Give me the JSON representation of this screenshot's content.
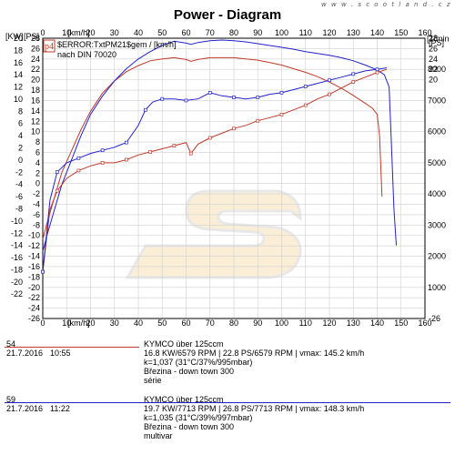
{
  "header": {
    "title": "Power - Diagram",
    "site": "w w w . s c o o t l a n d . c z"
  },
  "legend_box": {
    "line1": "$ERROR:TxtPM21$gem / [km/h]",
    "line2": "nach DIN 70020"
  },
  "chart_data": {
    "type": "line",
    "x_unit_label": "[km/h]",
    "xlim": [
      0,
      160
    ],
    "x_ticks": [
      0,
      10,
      20,
      30,
      40,
      50,
      60,
      70,
      80,
      90,
      100,
      110,
      120,
      130,
      140,
      150,
      160
    ],
    "axes": {
      "kw": {
        "label": "[KW]",
        "lim": [
          -26,
          20
        ],
        "ticks": [
          20,
          18,
          16,
          14,
          12,
          10,
          8,
          6,
          4,
          2,
          0,
          -2,
          -4,
          -6,
          -8,
          -10,
          -12,
          -14,
          -16,
          -18,
          -20,
          -22
        ]
      },
      "ps": {
        "label": "[PS]",
        "lim": [
          -26,
          28
        ],
        "ticks": [
          28,
          26,
          24,
          22,
          20,
          18,
          16,
          14,
          12,
          10,
          8,
          6,
          4,
          2,
          0,
          -2,
          -4,
          -6,
          -8,
          -10,
          -12,
          -14,
          -16,
          -18,
          -20,
          -22,
          -24,
          -26
        ]
      },
      "ps_right": {
        "label": "[PS]",
        "ticks": [
          28,
          26,
          24,
          22,
          20
        ],
        "bottom_tick": -26
      },
      "rpm": {
        "label": "[1/min",
        "lim": [
          0,
          9000
        ],
        "ticks": [
          8000,
          7000,
          6000,
          5000,
          4000,
          3000,
          2000,
          1000
        ]
      }
    },
    "series": [
      {
        "id": "54",
        "color": "#c0392b",
        "kind": "power_kw",
        "x": [
          0,
          2,
          5,
          8,
          12,
          16,
          20,
          25,
          30,
          35,
          40,
          45,
          50,
          55,
          60,
          62,
          65,
          70,
          75,
          80,
          85,
          90,
          95,
          100,
          105,
          110,
          115,
          120,
          125,
          130,
          135,
          138,
          140,
          141,
          142
        ],
        "y": [
          -13,
          -10,
          -6,
          -2,
          1.5,
          5,
          8,
          11,
          13,
          14.5,
          15.5,
          16.3,
          16.6,
          16.8,
          16.5,
          16.2,
          16.5,
          16.8,
          16.8,
          16.8,
          16.6,
          16.4,
          16.0,
          15.6,
          15.0,
          14.4,
          13.7,
          12.8,
          11.8,
          10.6,
          9.3,
          8.5,
          7.5,
          4,
          -6
        ]
      },
      {
        "id": "59",
        "color": "#2222cc",
        "kind": "power_kw",
        "x": [
          0,
          2,
          5,
          8,
          12,
          16,
          20,
          25,
          30,
          35,
          40,
          45,
          50,
          55,
          60,
          62,
          65,
          70,
          75,
          80,
          85,
          90,
          95,
          100,
          105,
          110,
          115,
          120,
          125,
          130,
          135,
          140,
          143,
          145,
          146,
          147,
          148
        ],
        "y": [
          -15,
          -12,
          -8,
          -4,
          0,
          4,
          7.5,
          10.5,
          13,
          15,
          16.6,
          17.8,
          18.8,
          19.5,
          19.2,
          19.0,
          19.3,
          19.6,
          19.7,
          19.6,
          19.4,
          19.1,
          18.8,
          18.5,
          18.2,
          17.8,
          17.5,
          17.2,
          16.8,
          16.3,
          15.6,
          14.8,
          14.0,
          12,
          2,
          -8,
          -14
        ]
      },
      {
        "id": "54",
        "color": "#c0392b",
        "kind": "rpm",
        "x": [
          0,
          3,
          6,
          10,
          15,
          20,
          25,
          30,
          35,
          40,
          45,
          50,
          55,
          60,
          62,
          65,
          70,
          75,
          80,
          85,
          90,
          95,
          100,
          105,
          110,
          115,
          120,
          125,
          130,
          135,
          140,
          144
        ],
        "y": [
          1500,
          3500,
          4100,
          4500,
          4750,
          4900,
          5000,
          5000,
          5100,
          5250,
          5350,
          5450,
          5550,
          5650,
          5300,
          5600,
          5800,
          5950,
          6100,
          6200,
          6350,
          6450,
          6550,
          6700,
          6850,
          7050,
          7200,
          7400,
          7600,
          7750,
          7900,
          8000
        ]
      },
      {
        "id": "59",
        "color": "#2222cc",
        "kind": "rpm",
        "x": [
          0,
          3,
          6,
          10,
          15,
          20,
          25,
          30,
          35,
          40,
          43,
          46,
          50,
          55,
          60,
          65,
          70,
          75,
          80,
          85,
          90,
          95,
          100,
          105,
          110,
          115,
          120,
          125,
          130,
          135,
          140,
          144
        ],
        "y": [
          1500,
          3800,
          4700,
          5000,
          5150,
          5300,
          5400,
          5500,
          5650,
          6200,
          6700,
          6950,
          7050,
          7050,
          7000,
          7050,
          7250,
          7150,
          7100,
          7050,
          7100,
          7200,
          7250,
          7350,
          7450,
          7550,
          7650,
          7750,
          7850,
          7950,
          8000,
          8050
        ]
      }
    ]
  },
  "runs": [
    {
      "id": "54",
      "date": "21.7.2016",
      "time": "10:55",
      "color": "#c0392b",
      "model": "KYMCO über 125ccm",
      "values": "16.8 KW/6579 RPM  |  22.8 PS/6579 RPM  |  vmax: 145.2 km/h",
      "conditions": "k=1,037 (31°C/37%/995mbar)",
      "place": "Březina - down town 300",
      "note": "série"
    },
    {
      "id": "59",
      "date": "21.7.2016",
      "time": "11:22",
      "color": "#2222cc",
      "model": "KYMCO über 125ccm",
      "values": "19.7 KW/7713 RPM  |  26.8 PS/7713 RPM  |  vmax: 148.3 km/h",
      "conditions": "k=1,035 (31°C/39%/997mbar)",
      "place": "Březina - down town 300",
      "note": "multivar"
    }
  ]
}
